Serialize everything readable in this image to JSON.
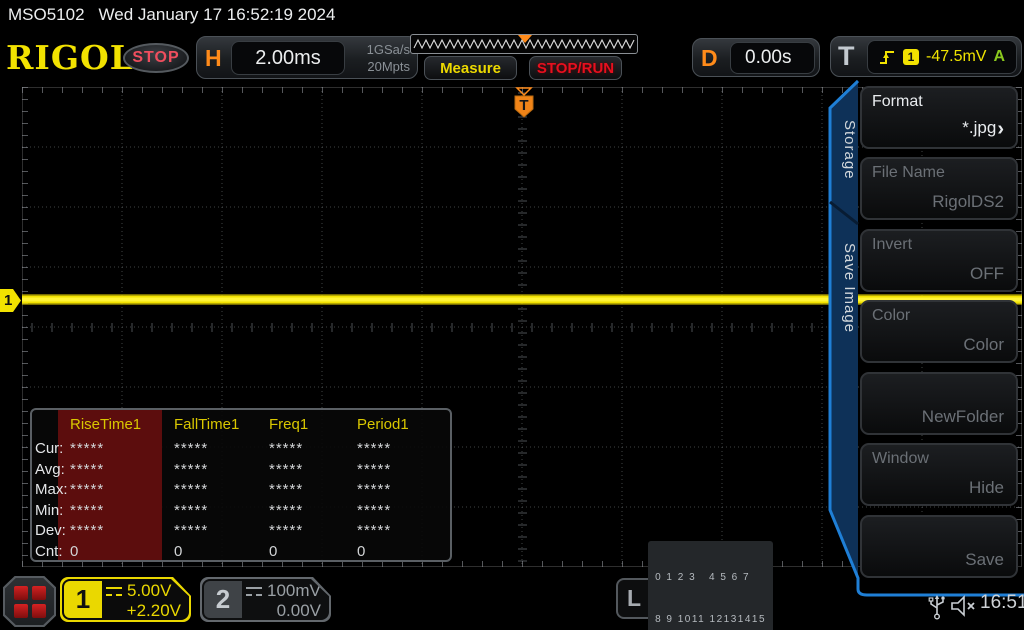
{
  "titlebar": {
    "model": "MSO5102",
    "datetime": "Wed January 17 16:52:19 2024"
  },
  "toolbar": {
    "logo": "RIGOL",
    "run_state": "STOP",
    "h_label": "H",
    "timebase": "2.00ms",
    "sample_rate": "1GSa/s",
    "mem_depth": "20Mpts",
    "measure_label": "Measure",
    "stoprun_label": "STOP/RUN",
    "d_label": "D",
    "delay": "0.00s",
    "t_label": "T",
    "trigger_source": "1",
    "trigger_level": "-47.5mV",
    "trigger_mode": "A"
  },
  "graticule": {
    "trigger_marker": "T",
    "channel1_marker": "1"
  },
  "measure_table": {
    "columns": [
      "RiseTime1",
      "FallTime1",
      "Freq1",
      "Period1"
    ],
    "rows": [
      {
        "label": "Cur:",
        "values": [
          "*****",
          "*****",
          "*****",
          "*****"
        ]
      },
      {
        "label": "Avg:",
        "values": [
          "*****",
          "*****",
          "*****",
          "*****"
        ]
      },
      {
        "label": "Max:",
        "values": [
          "*****",
          "*****",
          "*****",
          "*****"
        ]
      },
      {
        "label": "Min:",
        "values": [
          "*****",
          "*****",
          "*****",
          "*****"
        ]
      },
      {
        "label": "Dev:",
        "values": [
          "*****",
          "*****",
          "*****",
          "*****"
        ]
      },
      {
        "label": "Cnt:",
        "values": [
          "0",
          "0",
          "0",
          "0"
        ]
      }
    ]
  },
  "menu": {
    "tabs": [
      {
        "label": "Storage"
      },
      {
        "label": "Save Image"
      }
    ],
    "items": [
      {
        "label": "Format",
        "value": "*.jpg",
        "chevron": "›"
      },
      {
        "label": "File Name",
        "value": "RigolDS2",
        "chevron": ""
      },
      {
        "label": "Invert",
        "value": "OFF",
        "chevron": ""
      },
      {
        "label": "Color",
        "value": "Color",
        "chevron": ""
      },
      {
        "label": "",
        "value": "NewFolder",
        "chevron": ""
      },
      {
        "label": "Window",
        "value": "Hide",
        "chevron": ""
      },
      {
        "label": "",
        "value": "Save",
        "chevron": ""
      }
    ]
  },
  "channels": [
    {
      "id": "1",
      "scale": "5.00V",
      "offset": "+2.20V"
    },
    {
      "id": "2",
      "scale": "100mV",
      "offset": "0.00V"
    }
  ],
  "digital": {
    "label": "L",
    "row1": "0 1 2 3   4 5 6 7",
    "row2": "8 9 1011 12131415"
  },
  "status": {
    "time": "16:51"
  },
  "colors": {
    "channel1_yellow": "#f2e200",
    "orange_accent": "#ff8b1a",
    "menu_blue": "#1f7fd6",
    "stop_red": "#ef4e5e",
    "trigger_mode_green": "#8ac81e",
    "table_highlight_red": "#5c0d0d"
  }
}
